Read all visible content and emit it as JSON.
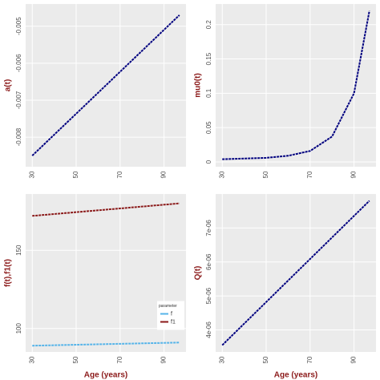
{
  "chart_data": [
    {
      "type": "line",
      "ylabel": "a(t)",
      "x": [
        30,
        97
      ],
      "series": [
        {
          "name": "a",
          "color": "#00007f",
          "values": [
            -0.0085,
            -0.0047
          ]
        }
      ],
      "xlim": [
        27,
        100
      ],
      "xticks": [
        30,
        50,
        70,
        90
      ],
      "ylim": [
        -0.0088,
        -0.0044
      ],
      "yticks": [
        -0.008,
        -0.007,
        -0.006,
        -0.005
      ],
      "grid": true
    },
    {
      "type": "line",
      "ylabel": "mu0(t)",
      "x": [
        30,
        40,
        50,
        60,
        70,
        80,
        90,
        97
      ],
      "series": [
        {
          "name": "mu0",
          "color": "#00007f",
          "values": [
            0.004,
            0.005,
            0.006,
            0.009,
            0.016,
            0.037,
            0.1,
            0.22
          ]
        }
      ],
      "xlim": [
        27,
        100
      ],
      "xticks": [
        30,
        50,
        70,
        90
      ],
      "ylim": [
        -0.007,
        0.23
      ],
      "yticks": [
        0,
        0.05,
        0.1,
        0.15,
        0.2
      ],
      "grid": true
    },
    {
      "type": "line",
      "ylabel": "f(t),f1(t)",
      "xlabel": "Age (years)",
      "x": [
        30,
        97
      ],
      "series": [
        {
          "name": "f",
          "color": "#56b4e9",
          "values": [
            89,
            91
          ]
        },
        {
          "name": "f1",
          "color": "#8b1a1a",
          "values": [
            172,
            180
          ]
        }
      ],
      "legend_title": "parameter",
      "legend": "inside-right",
      "xlim": [
        27,
        100
      ],
      "xticks": [
        30,
        50,
        70,
        90
      ],
      "ylim": [
        85,
        186
      ],
      "yticks": [
        100,
        150
      ],
      "grid": true
    },
    {
      "type": "line",
      "ylabel": "Q(t)",
      "xlabel": "Age (years)",
      "x": [
        30,
        97
      ],
      "series": [
        {
          "name": "Q",
          "color": "#00007f",
          "values": [
            3.55e-06,
            7.8e-06
          ]
        }
      ],
      "xlim": [
        27,
        100
      ],
      "xticks": [
        30,
        50,
        70,
        90
      ],
      "ylim": [
        3.35e-06,
        8e-06
      ],
      "yticks": [
        {
          "value": 4e-06,
          "label": "4e-06"
        },
        {
          "value": 5e-06,
          "label": "5e-06"
        },
        {
          "value": 6e-06,
          "label": "6e-06"
        },
        {
          "value": 7e-06,
          "label": "7e-06"
        }
      ],
      "grid": true
    }
  ]
}
